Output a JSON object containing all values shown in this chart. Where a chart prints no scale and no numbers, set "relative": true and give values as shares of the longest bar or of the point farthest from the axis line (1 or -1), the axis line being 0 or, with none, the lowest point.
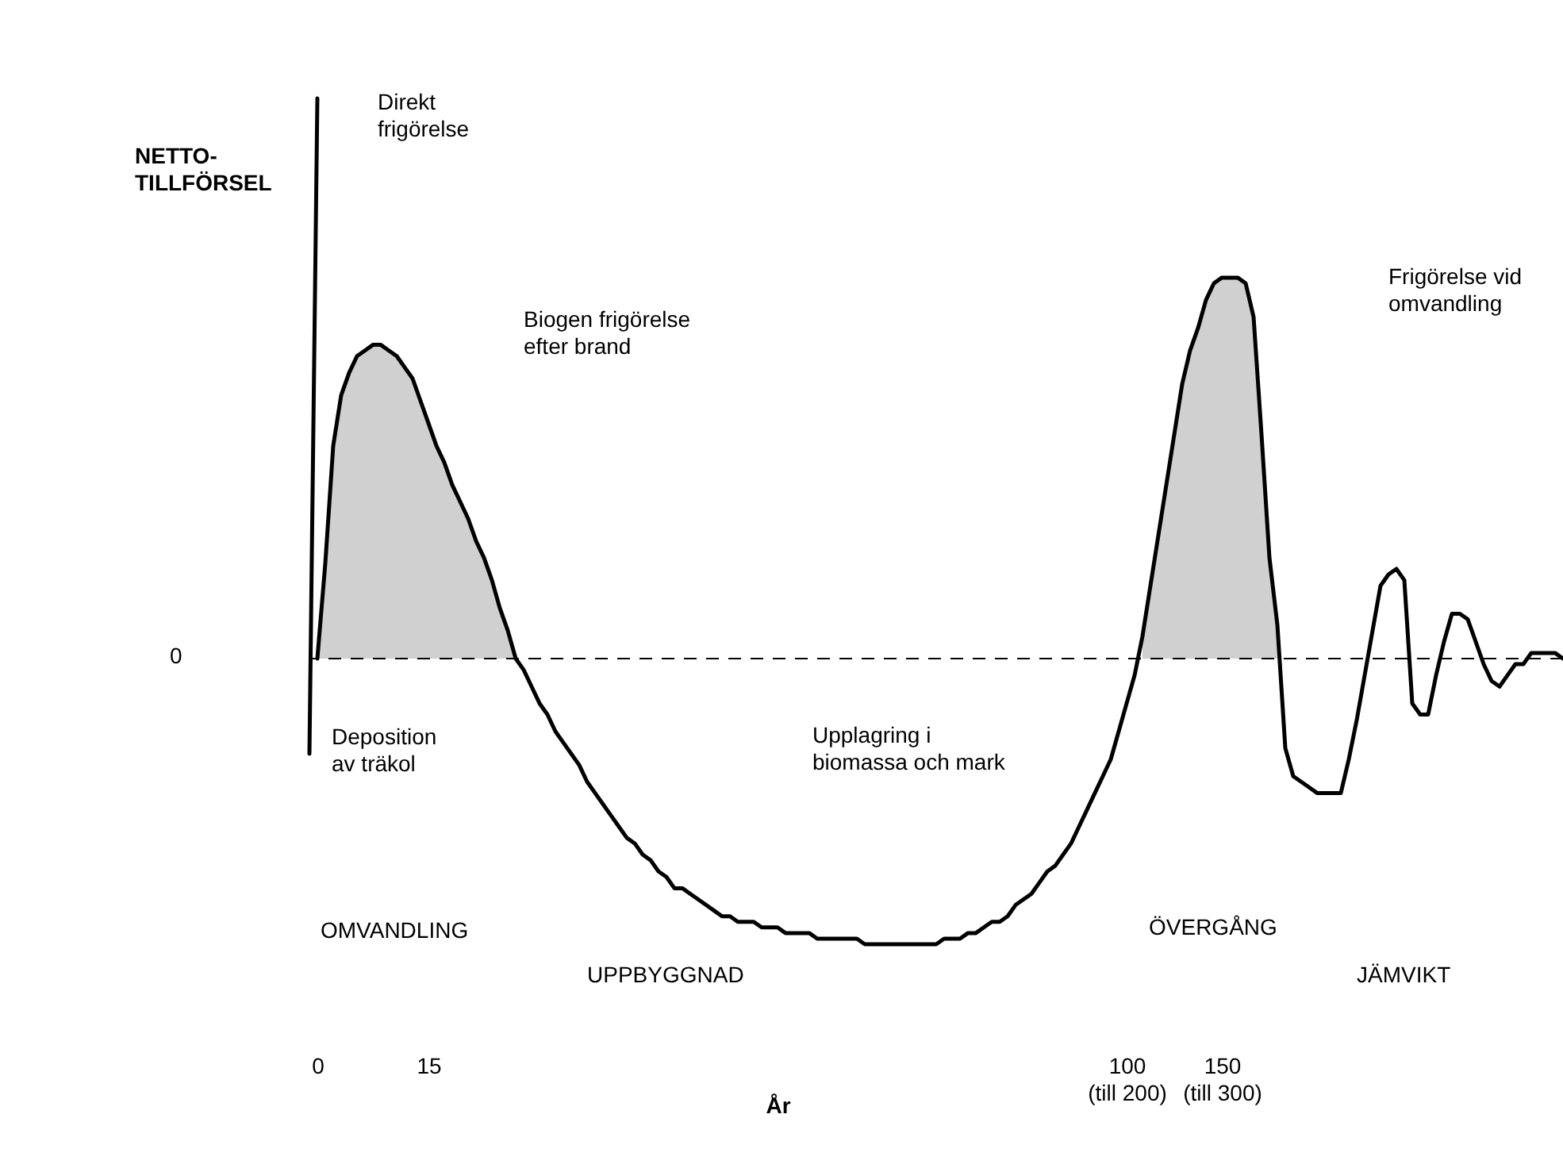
{
  "chart_data": {
    "type": "line",
    "relative": true,
    "xlabel": "År",
    "ylabel": "NETTO-TILLFÖRSEL",
    "categories": [
      null,
      "0",
      null,
      null,
      null,
      null,
      null,
      null,
      null,
      null,
      null,
      null,
      null,
      null,
      null,
      "15",
      null,
      null,
      null,
      null,
      null,
      null,
      null,
      null,
      null,
      null,
      null,
      null,
      null,
      null,
      null,
      null,
      null,
      null,
      null,
      null,
      null,
      null,
      null,
      null,
      null,
      null,
      null,
      null,
      null,
      null,
      null,
      null,
      null,
      null,
      null,
      null,
      null,
      null,
      null,
      null,
      null,
      null,
      null,
      null,
      null,
      null,
      null,
      null,
      null,
      null,
      null,
      null,
      null,
      null,
      null,
      null,
      null,
      null,
      null,
      null,
      null,
      null,
      null,
      null,
      null,
      null,
      null,
      null,
      null,
      null,
      null,
      null,
      null,
      null,
      null,
      null,
      null,
      null,
      null,
      null,
      null,
      null,
      null,
      null,
      null,
      null,
      null,
      "100\n(till 200)",
      null,
      null,
      null,
      null,
      null,
      null,
      null,
      null,
      null,
      null,
      null,
      "150\n(till 300)",
      null,
      null,
      null,
      null,
      null,
      null,
      null,
      null,
      null,
      null,
      null,
      null,
      null,
      null,
      null,
      null,
      null,
      null,
      null,
      null,
      null,
      null,
      null,
      null,
      null,
      null,
      null,
      null,
      null,
      null,
      null,
      null,
      null,
      null,
      null,
      null,
      null,
      null,
      null,
      null,
      null,
      null,
      null
    ],
    "series": [
      {
        "type": "area",
        "color": "#b0b0b0",
        "values": [
          null,
          0,
          0.17,
          0.38,
          0.47,
          0.51,
          0.54,
          0.55,
          0.56,
          0.56,
          0.55,
          0.54,
          0.52,
          0.5,
          0.46,
          0.42,
          0.38,
          0.35,
          0.31,
          0.28,
          0.25,
          0.21,
          0.18,
          0.14,
          0.09,
          0.05,
          0,
          null,
          null,
          null,
          null,
          null,
          null,
          null,
          null,
          null,
          null,
          null,
          null,
          null,
          null,
          null,
          null,
          null,
          null,
          null,
          null,
          null,
          null,
          null,
          null,
          null,
          null,
          null,
          null,
          null,
          null,
          null,
          null,
          null,
          null,
          null,
          null,
          null,
          null,
          null,
          null,
          null,
          null,
          null,
          null,
          null,
          null,
          null,
          null,
          null,
          null,
          null,
          null,
          null,
          null,
          null,
          null,
          null,
          null,
          null,
          null,
          null,
          null,
          null,
          null,
          null,
          null,
          null,
          null,
          null,
          null,
          null,
          null,
          null,
          null,
          null,
          null,
          null,
          null,
          null,
          null,
          null,
          null,
          null,
          null,
          null,
          null,
          null,
          null,
          null,
          null,
          null,
          null,
          null,
          null,
          null,
          null,
          null,
          null,
          null,
          null,
          null,
          null,
          null,
          null,
          null,
          null,
          null,
          null,
          null,
          null,
          null,
          null,
          null,
          null,
          null,
          null,
          null,
          null,
          null,
          null,
          null,
          null,
          null,
          null,
          null,
          null,
          null,
          null,
          null,
          null,
          null,
          null
        ]
      },
      {
        "type": "area",
        "color": "#b0b0b0",
        "values": [
          null,
          null,
          null,
          null,
          null,
          null,
          null,
          null,
          null,
          null,
          null,
          null,
          null,
          null,
          null,
          null,
          null,
          null,
          null,
          null,
          null,
          null,
          null,
          null,
          null,
          null,
          null,
          null,
          null,
          null,
          null,
          null,
          null,
          null,
          null,
          null,
          null,
          null,
          null,
          null,
          null,
          null,
          null,
          null,
          null,
          null,
          null,
          null,
          null,
          null,
          null,
          null,
          null,
          null,
          null,
          null,
          null,
          null,
          null,
          null,
          null,
          null,
          null,
          null,
          null,
          null,
          null,
          null,
          null,
          null,
          null,
          null,
          null,
          null,
          null,
          null,
          null,
          null,
          null,
          null,
          null,
          null,
          null,
          null,
          null,
          null,
          null,
          null,
          null,
          null,
          null,
          null,
          null,
          null,
          null,
          null,
          null,
          null,
          null,
          null,
          null,
          null,
          null,
          null,
          null,
          0.04,
          0.13,
          0.22,
          0.31,
          0.4,
          0.49,
          0.55,
          0.59,
          0.64,
          0.67,
          0.68,
          0.68,
          0.68,
          0.67,
          0.61,
          0.4,
          0.18,
          0.06,
          null,
          null,
          null,
          null,
          null,
          null,
          null,
          null,
          null,
          null,
          null,
          null,
          null,
          null,
          null,
          null,
          null,
          null,
          null,
          null,
          null,
          null,
          null,
          null,
          null,
          null,
          null,
          null,
          null,
          null,
          null,
          null,
          null,
          null,
          null,
          null
        ]
      },
      {
        "color": "#000000",
        "values": [
          -0.17,
          1,
          null,
          null,
          null,
          null,
          null,
          null,
          null,
          null,
          null,
          null,
          null,
          null,
          null,
          null,
          null,
          null,
          null,
          null,
          null,
          null,
          null,
          null,
          null,
          null,
          null,
          null,
          null,
          null,
          null,
          null,
          null,
          null,
          null,
          null,
          null,
          null,
          null,
          null,
          null,
          null,
          null,
          null,
          null,
          null,
          null,
          null,
          null,
          null,
          null,
          null,
          null,
          null,
          null,
          null,
          null,
          null,
          null,
          null,
          null,
          null,
          null,
          null,
          null,
          null,
          null,
          null,
          null,
          null,
          null,
          null,
          null,
          null,
          null,
          null,
          null,
          null,
          null,
          null,
          null,
          null,
          null,
          null,
          null,
          null,
          null,
          null,
          null,
          null,
          null,
          null,
          null,
          null,
          null,
          null,
          null,
          null,
          null,
          null,
          null,
          null,
          null,
          null,
          null,
          null,
          null,
          null,
          null,
          null,
          null,
          null,
          null,
          null,
          null,
          null,
          null,
          null,
          null,
          null,
          null,
          null,
          null,
          null,
          null,
          null,
          null,
          null,
          null,
          null,
          null,
          null,
          null,
          null,
          null,
          null,
          null,
          null,
          null,
          null,
          null,
          null,
          null,
          null,
          null,
          null,
          null,
          null,
          null,
          null,
          null,
          null,
          null,
          null,
          null,
          null,
          null,
          null,
          null
        ]
      },
      {
        "color": "#000000",
        "values": [
          null,
          0,
          0.17,
          0.38,
          0.47,
          0.51,
          0.54,
          0.55,
          0.56,
          0.56,
          0.55,
          0.54,
          0.52,
          0.5,
          0.46,
          0.42,
          0.38,
          0.35,
          0.31,
          0.28,
          0.25,
          0.21,
          0.18,
          0.14,
          0.09,
          0.05,
          0,
          -0.02,
          -0.05,
          -0.08,
          -0.1,
          -0.13,
          -0.15,
          -0.17,
          -0.19,
          -0.22,
          -0.24,
          -0.26,
          -0.28,
          -0.3,
          -0.32,
          -0.33,
          -0.35,
          -0.36,
          -0.38,
          -0.39,
          -0.41,
          -0.41,
          -0.42,
          -0.43,
          -0.44,
          -0.45,
          -0.46,
          -0.46,
          -0.47,
          -0.47,
          -0.47,
          -0.48,
          -0.48,
          -0.48,
          -0.49,
          -0.49,
          -0.49,
          -0.49,
          -0.5,
          -0.5,
          -0.5,
          -0.5,
          -0.5,
          -0.5,
          -0.51,
          -0.51,
          -0.51,
          -0.51,
          -0.51,
          -0.51,
          -0.51,
          -0.51,
          -0.51,
          -0.51,
          -0.5,
          -0.5,
          -0.5,
          -0.49,
          -0.49,
          -0.48,
          -0.47,
          -0.47,
          -0.46,
          -0.44,
          -0.43,
          -0.42,
          -0.4,
          -0.38,
          -0.37,
          -0.35,
          -0.33,
          -0.3,
          -0.27,
          -0.24,
          -0.21,
          -0.18,
          -0.13,
          -0.08,
          -0.03,
          0.04,
          0.13,
          0.22,
          0.31,
          0.4,
          0.49,
          0.55,
          0.59,
          0.64,
          0.67,
          0.68,
          0.68,
          0.68,
          0.67,
          0.61,
          0.4,
          0.18,
          0.06,
          -0.16,
          -0.21,
          -0.22,
          -0.23,
          -0.24,
          -0.24,
          -0.24,
          -0.24,
          -0.18,
          -0.11,
          -0.03,
          0.05,
          0.13,
          0.15,
          0.16,
          0.14,
          -0.08,
          -0.1,
          -0.1,
          -0.03,
          0.03,
          0.08,
          0.08,
          0.07,
          0.03,
          -0.01,
          -0.04,
          -0.05,
          -0.03,
          -0.01,
          -0.01,
          0.01,
          0.01,
          0.01,
          0.01,
          0
        ]
      }
    ],
    "ref_lines": [
      {
        "axis": "y",
        "value": 0,
        "line_style": "dashed",
        "color": "#000000"
      }
    ],
    "annotations": [
      "Direkt frigörelse",
      "Biogen frigörelse efter brand",
      "Frigörelse vid omvandling",
      "Deposition av träkol",
      "Upplagring i biomassa och mark",
      "0",
      "OMVANDLING",
      "UPPBYGGNAD",
      "ÖVERGÅNG",
      "JÄMVIKT"
    ]
  }
}
